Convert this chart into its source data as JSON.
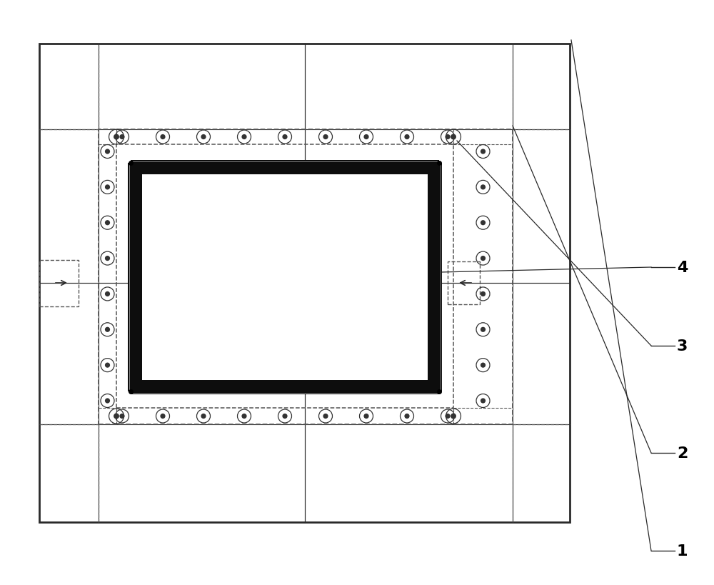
{
  "fig_width": 10.0,
  "fig_height": 8.2,
  "bg_color": "#ffffff",
  "lc": "#2a2a2a",
  "dc": "#555555",
  "bc": "#333333",
  "pc": "#0d0d0d",
  "labels": [
    "1",
    "2",
    "3",
    "4"
  ],
  "label_fontsize": 16
}
